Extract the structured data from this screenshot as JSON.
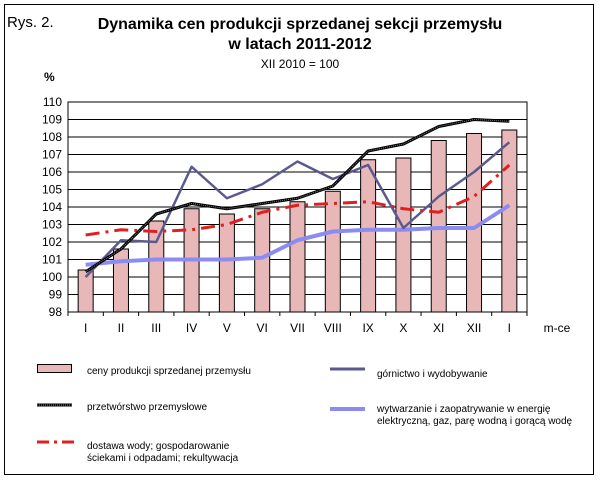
{
  "figure": {
    "label": "Rys. 2.",
    "title_line1": "Dynamika cen produkcji sprzedanej sekcji przemysłu",
    "title_line2": "w latach 2011-2012",
    "subtitle": "XII 2010 = 100"
  },
  "chart_data": {
    "type": "bar",
    "ylabel": "%",
    "xlabel": "m-ce",
    "ylim": [
      98,
      110
    ],
    "yticks": [
      98,
      99,
      100,
      101,
      102,
      103,
      104,
      105,
      106,
      107,
      108,
      109,
      110
    ],
    "grid": true,
    "categories": [
      "I",
      "II",
      "III",
      "IV",
      "V",
      "VI",
      "VII",
      "VIII",
      "IX",
      "X",
      "XI",
      "XII",
      "I"
    ],
    "series": [
      {
        "name": "ceny produkcji sprzedanej przemysłu",
        "kind": "bar",
        "color": "#e8b8b8",
        "values": [
          100.4,
          101.6,
          103.2,
          103.9,
          103.6,
          103.9,
          104.3,
          104.9,
          106.7,
          106.8,
          107.8,
          108.2,
          108.4
        ]
      },
      {
        "name": "górnictwo i wydobywanie",
        "kind": "line",
        "color": "#5a5a90",
        "values": [
          100.0,
          102.1,
          102.0,
          106.3,
          104.5,
          105.3,
          106.6,
          105.6,
          106.4,
          102.8,
          104.6,
          106.0,
          107.7
        ]
      },
      {
        "name": "przetwórstwo przemysłowe",
        "kind": "line",
        "color": "#000000",
        "values": [
          100.3,
          101.6,
          103.6,
          104.2,
          103.9,
          104.2,
          104.5,
          105.2,
          107.2,
          107.6,
          108.6,
          109.0,
          108.9
        ]
      },
      {
        "name": "wytwarzanie i zaopatrywanie w energię elektryczną, gaz, parę wodną i gorącą wodę",
        "kind": "line",
        "color": "#8c8cf0",
        "values": [
          100.7,
          100.9,
          101.0,
          101.0,
          101.0,
          101.1,
          102.1,
          102.6,
          102.7,
          102.7,
          102.8,
          102.8,
          104.1
        ]
      },
      {
        "name": "dostawa wody; gospodarowanie ściekami i odpadami; rekultywacja",
        "kind": "line",
        "color": "#e02020",
        "values": [
          102.4,
          102.7,
          102.6,
          102.7,
          103.0,
          103.7,
          104.1,
          104.2,
          104.3,
          103.9,
          103.7,
          104.6,
          106.4
        ]
      }
    ]
  },
  "legend": {
    "items": [
      {
        "label": "ceny produkcji sprzedanej przemysłu"
      },
      {
        "label": "górnictwo i wydobywanie"
      },
      {
        "label": "przetwórstwo przemysłowe"
      },
      {
        "line1": "wytwarzanie  i zaopatrywanie  w energię",
        "line2": "elektryczną, gaz, parę wodną i gorącą wodę"
      },
      {
        "line1": "dostawa wody; gospodarowanie",
        "line2": "ściekami i odpadami; rekultywacja"
      }
    ]
  }
}
